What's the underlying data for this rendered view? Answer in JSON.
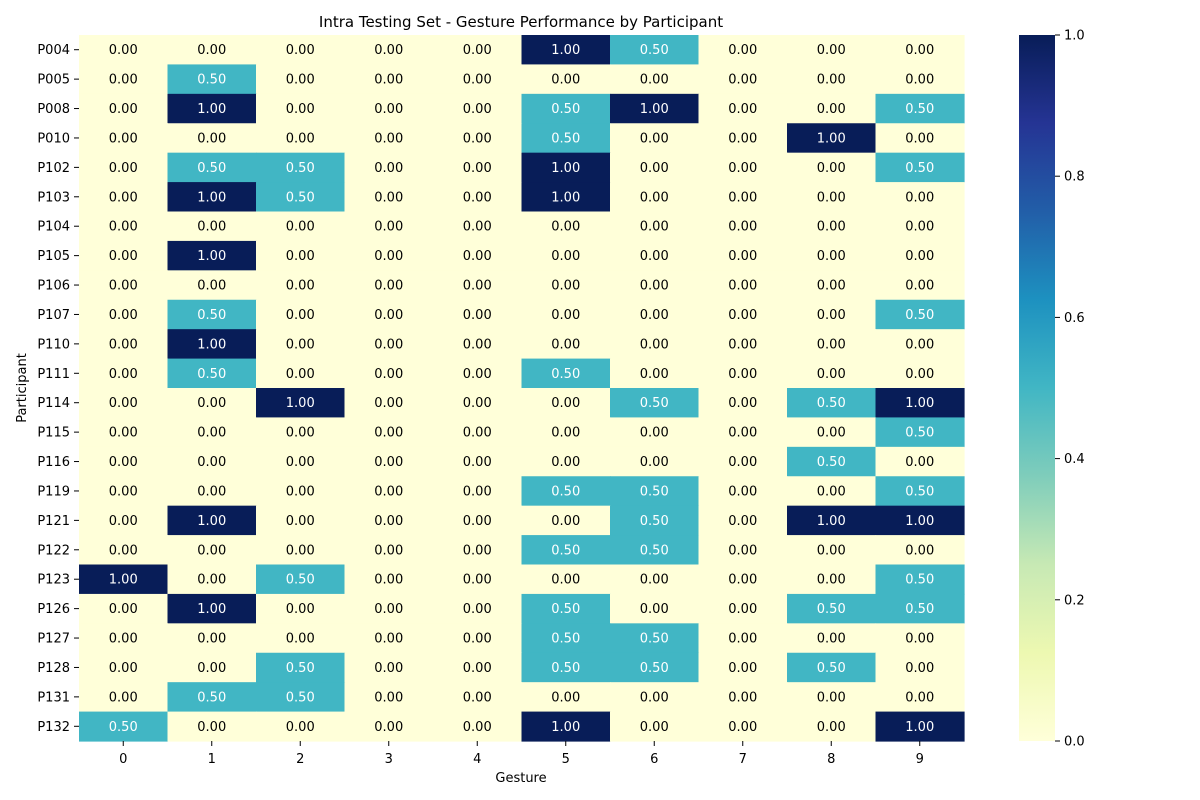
{
  "chart_data": {
    "type": "heatmap",
    "title": "Intra Testing Set - Gesture Performance by Participant",
    "xlabel": "Gesture",
    "ylabel": "Participant",
    "x_categories": [
      "0",
      "1",
      "2",
      "3",
      "4",
      "5",
      "6",
      "7",
      "8",
      "9"
    ],
    "y_categories": [
      "P004",
      "P005",
      "P008",
      "P010",
      "P102",
      "P103",
      "P104",
      "P105",
      "P106",
      "P107",
      "P110",
      "P111",
      "P114",
      "P115",
      "P116",
      "P119",
      "P121",
      "P122",
      "P123",
      "P126",
      "P127",
      "P128",
      "P131",
      "P132"
    ],
    "values": [
      [
        0,
        0,
        0,
        0,
        0,
        1,
        0.5,
        0,
        0,
        0
      ],
      [
        0,
        0.5,
        0,
        0,
        0,
        0,
        0,
        0,
        0,
        0
      ],
      [
        0,
        1,
        0,
        0,
        0,
        0.5,
        1,
        0,
        0,
        0.5
      ],
      [
        0,
        0,
        0,
        0,
        0,
        0.5,
        0,
        0,
        1,
        0
      ],
      [
        0,
        0.5,
        0.5,
        0,
        0,
        1,
        0,
        0,
        0,
        0.5
      ],
      [
        0,
        1,
        0.5,
        0,
        0,
        1,
        0,
        0,
        0,
        0
      ],
      [
        0,
        0,
        0,
        0,
        0,
        0,
        0,
        0,
        0,
        0
      ],
      [
        0,
        1,
        0,
        0,
        0,
        0,
        0,
        0,
        0,
        0
      ],
      [
        0,
        0,
        0,
        0,
        0,
        0,
        0,
        0,
        0,
        0
      ],
      [
        0,
        0.5,
        0,
        0,
        0,
        0,
        0,
        0,
        0,
        0.5
      ],
      [
        0,
        1,
        0,
        0,
        0,
        0,
        0,
        0,
        0,
        0
      ],
      [
        0,
        0.5,
        0,
        0,
        0,
        0.5,
        0,
        0,
        0,
        0
      ],
      [
        0,
        0,
        1,
        0,
        0,
        0,
        0.5,
        0,
        0.5,
        1
      ],
      [
        0,
        0,
        0,
        0,
        0,
        0,
        0,
        0,
        0,
        0.5
      ],
      [
        0,
        0,
        0,
        0,
        0,
        0,
        0,
        0,
        0.5,
        0
      ],
      [
        0,
        0,
        0,
        0,
        0,
        0.5,
        0.5,
        0,
        0,
        0.5
      ],
      [
        0,
        1,
        0,
        0,
        0,
        0,
        0.5,
        0,
        1,
        1
      ],
      [
        0,
        0,
        0,
        0,
        0,
        0.5,
        0.5,
        0,
        0,
        0
      ],
      [
        1,
        0,
        0.5,
        0,
        0,
        0,
        0,
        0,
        0,
        0.5
      ],
      [
        0,
        1,
        0,
        0,
        0,
        0.5,
        0,
        0,
        0.5,
        0.5
      ],
      [
        0,
        0,
        0,
        0,
        0,
        0.5,
        0.5,
        0,
        0,
        0
      ],
      [
        0,
        0,
        0.5,
        0,
        0,
        0.5,
        0.5,
        0,
        0.5,
        0
      ],
      [
        0,
        0.5,
        0.5,
        0,
        0,
        0,
        0,
        0,
        0,
        0
      ],
      [
        0.5,
        0,
        0,
        0,
        0,
        1,
        0,
        0,
        0,
        1
      ]
    ],
    "value_format": "0.00",
    "colormap": "YlGnBu",
    "vmin": 0,
    "vmax": 1,
    "colorbar_ticks": [
      "0.0",
      "0.2",
      "0.4",
      "0.6",
      "0.8",
      "1.0"
    ],
    "colors": {
      "low": "#ffffd9",
      "mid": "#41b6c4",
      "high": "#081d58",
      "text_dark": "#000000",
      "text_light": "#ffffff"
    }
  }
}
